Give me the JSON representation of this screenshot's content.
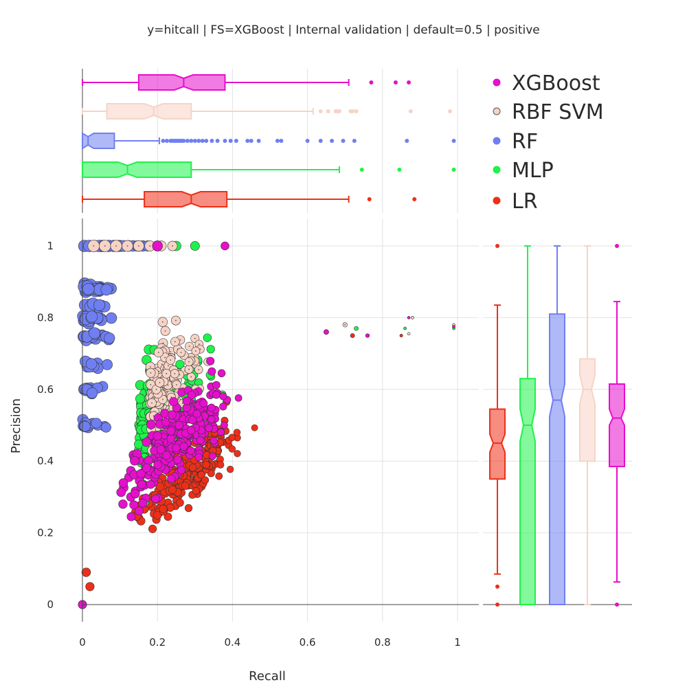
{
  "title": "y=hitcall | FS=XGBoost | Internal validation | default=0.5 | positive",
  "chart_data": [
    {
      "type": "scatter",
      "title": "y=hitcall | FS=XGBoost | Internal validation | default=0.5 | positive",
      "xlabel": "Recall",
      "ylabel": "Precision",
      "xlim": [
        0,
        1.05
      ],
      "ylim": [
        0,
        1.07
      ],
      "x_ticks": [
        "0",
        "0.2",
        "0.4",
        "0.6",
        "0.8",
        "1"
      ],
      "y_ticks": [
        "0",
        "0.2",
        "0.4",
        "0.6",
        "0.8",
        "1"
      ],
      "grid": true,
      "legend_position": "top-right",
      "series": [
        {
          "name": "XGBoost",
          "color": "#e60fcc",
          "values": []
        },
        {
          "name": "RBF SVM",
          "color": "#f7d3c6",
          "values": []
        },
        {
          "name": "RF",
          "color": "#6f7ff2",
          "values": []
        },
        {
          "name": "MLP",
          "color": "#1ff24a",
          "values": []
        },
        {
          "name": "LR",
          "color": "#ee2f18",
          "values": []
        }
      ]
    },
    {
      "type": "box",
      "orientation": "horizontal",
      "axis": "Recall",
      "boxes": [
        {
          "name": "XGBoost",
          "color": "#e60fcc",
          "whisker_low": 0,
          "q1": 0.15,
          "median": 0.27,
          "q3": 0.38,
          "whisker_high": 0.71,
          "notch": [
            0.245,
            0.295
          ],
          "outliers": [
            0.77,
            0.835,
            0.87
          ]
        },
        {
          "name": "RBF SVM",
          "color": "#f7d3c6",
          "whisker_low": 0,
          "q1": 0.065,
          "median": 0.19,
          "q3": 0.29,
          "whisker_high": 0.615,
          "notch": [
            0.165,
            0.215
          ],
          "outliers": [
            0.635,
            0.655,
            0.675,
            0.68,
            0.685,
            0.715,
            0.72,
            0.73,
            0.875,
            0.98
          ]
        },
        {
          "name": "RF",
          "color": "#6f7ff2",
          "whisker_low": 0,
          "q1": 0,
          "median": 0.015,
          "q3": 0.085,
          "whisker_high": 0.205,
          "notch": [
            0,
            0.03
          ],
          "outliers": [
            0.215,
            0.225,
            0.235,
            0.24,
            0.245,
            0.25,
            0.255,
            0.26,
            0.265,
            0.27,
            0.28,
            0.29,
            0.3,
            0.31,
            0.32,
            0.33,
            0.345,
            0.36,
            0.38,
            0.395,
            0.41,
            0.44,
            0.45,
            0.47,
            0.52,
            0.53,
            0.6,
            0.635,
            0.665,
            0.695,
            0.725,
            0.865,
            0.99
          ]
        },
        {
          "name": "MLP",
          "color": "#1ff24a",
          "whisker_low": 0,
          "q1": 0,
          "median": 0.12,
          "q3": 0.29,
          "whisker_high": 0.685,
          "notch": [
            0.095,
            0.145
          ],
          "outliers": [
            0.745,
            0.845,
            0.99
          ]
        },
        {
          "name": "LR",
          "color": "#ee2f18",
          "whisker_low": 0,
          "q1": 0.165,
          "median": 0.29,
          "q3": 0.385,
          "whisker_high": 0.71,
          "notch": [
            0.265,
            0.315
          ],
          "outliers": [
            0.765,
            0.885
          ]
        }
      ]
    },
    {
      "type": "box",
      "orientation": "vertical",
      "axis": "Precision",
      "boxes": [
        {
          "name": "LR",
          "color": "#ee2f18",
          "whisker_low": 0.085,
          "q1": 0.35,
          "median": 0.45,
          "q3": 0.545,
          "whisker_high": 0.835,
          "notch": [
            0.425,
            0.475
          ],
          "outliers": [
            0,
            0.05,
            1.0
          ]
        },
        {
          "name": "MLP",
          "color": "#1ff24a",
          "whisker_low": 0,
          "q1": 0,
          "median": 0.5,
          "q3": 0.63,
          "whisker_high": 1.0,
          "notch": [
            0.455,
            0.545
          ],
          "outliers": []
        },
        {
          "name": "RF",
          "color": "#6f7ff2",
          "whisker_low": 0,
          "q1": 0,
          "median": 0.57,
          "q3": 0.81,
          "whisker_high": 1.0,
          "notch": [
            0.525,
            0.615
          ],
          "outliers": []
        },
        {
          "name": "RBF SVM",
          "color": "#f7d3c6",
          "whisker_low": 0,
          "q1": 0.4,
          "median": 0.6,
          "q3": 0.685,
          "whisker_high": 1.0,
          "notch": [
            0.56,
            0.64
          ],
          "outliers": []
        },
        {
          "name": "XGBoost",
          "color": "#e60fcc",
          "whisker_low": 0.063,
          "q1": 0.385,
          "median": 0.52,
          "q3": 0.615,
          "whisker_high": 0.845,
          "notch": [
            0.5,
            0.545
          ],
          "outliers": [
            0,
            1.0
          ]
        }
      ]
    }
  ]
}
